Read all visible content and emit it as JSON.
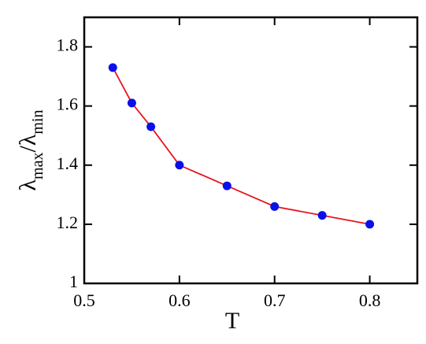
{
  "chart_data": {
    "type": "line",
    "xlabel": "T",
    "ylabel": [
      {
        "text": "λ"
      },
      {
        "text": "max",
        "sub": true
      },
      {
        "text": "/λ"
      },
      {
        "text": "min",
        "sub": true
      }
    ],
    "x": [
      0.53,
      0.55,
      0.57,
      0.6,
      0.65,
      0.7,
      0.75,
      0.8
    ],
    "series": [
      {
        "line_color": "#e8141e",
        "color": "#0a10e8",
        "values": [
          1.73,
          1.61,
          1.53,
          1.4,
          1.33,
          1.26,
          1.23,
          1.2
        ]
      }
    ],
    "xlim": [
      0.5,
      0.85
    ],
    "ylim": [
      1,
      1.9
    ],
    "xticks": [
      0.5,
      0.6,
      0.7,
      0.8
    ],
    "yticks": [
      1,
      1.2,
      1.4,
      1.6,
      1.8
    ]
  }
}
